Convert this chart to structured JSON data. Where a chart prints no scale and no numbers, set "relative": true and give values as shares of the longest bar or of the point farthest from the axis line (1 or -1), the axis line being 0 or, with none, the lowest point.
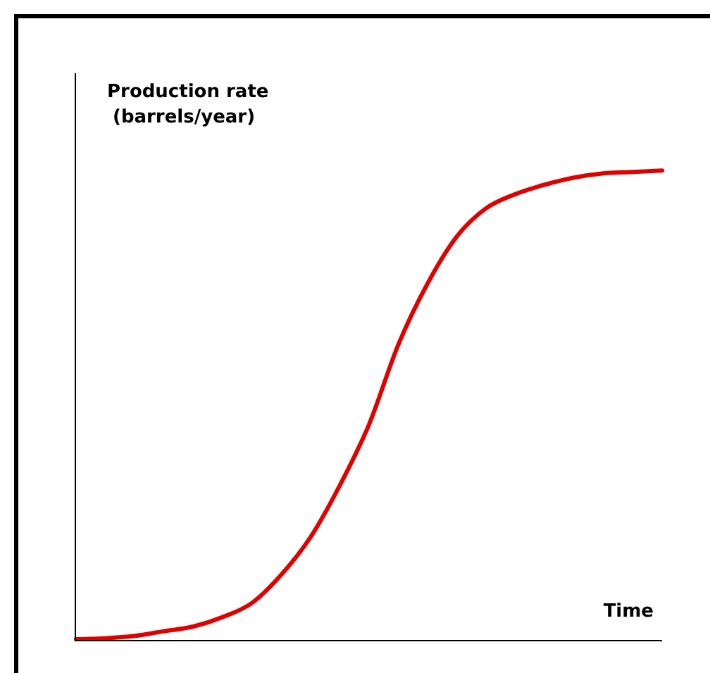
{
  "chart_data": {
    "type": "line",
    "relative": true,
    "xlabel": "Time",
    "ylabel": "Production rate\n(barrels/year)",
    "categories": [
      null,
      null,
      null,
      null,
      null,
      null,
      null,
      null,
      null,
      null,
      null,
      null,
      null,
      null,
      null,
      null,
      null,
      null,
      null,
      null,
      null
    ],
    "series": [
      {
        "color": "#e00000",
        "values": [
          0.003,
          0.005,
          0.01,
          0.02,
          0.03,
          0.05,
          0.08,
          0.14,
          0.22,
          0.33,
          0.46,
          0.63,
          0.76,
          0.86,
          0.92,
          0.95,
          0.97,
          0.985,
          0.994,
          0.997,
          1
        ]
      }
    ],
    "legend": false,
    "marker": "none",
    "line_style": "solid"
  }
}
